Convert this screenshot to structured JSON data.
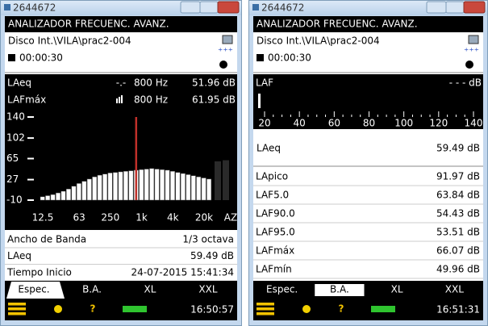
{
  "windows": [
    {
      "title": "2644672",
      "header": "ANALIZADOR FRECUENC. AVANZ.",
      "file": "Disco Int.\\VILA\\prac2-004",
      "time": "00:00:30",
      "readings": [
        {
          "name": "LAeq",
          "symbol": "-.-",
          "freq": "800 Hz",
          "value": "51.96 dB"
        },
        {
          "name": "LAFmáx",
          "freq": "800 Hz",
          "value": "61.95 dB"
        }
      ],
      "spectrum": {
        "type": "bar",
        "ylim": [
          -10,
          140
        ],
        "yticks": [
          140,
          102,
          65,
          27,
          -10
        ],
        "xlabels": [
          "12.5",
          "63",
          "250",
          "1k",
          "4k",
          "20k",
          "AZ"
        ],
        "values": [
          -4,
          -2,
          0,
          3,
          6,
          10,
          15,
          20,
          24,
          28,
          32,
          35,
          37,
          39,
          40,
          41,
          42,
          43,
          44,
          45,
          46,
          47,
          46,
          45,
          44,
          42,
          40,
          38,
          36,
          34,
          32,
          30,
          28
        ]
      },
      "info": [
        {
          "label": "Ancho de Banda",
          "value": "1/3 octava"
        },
        {
          "label": "LAeq",
          "value": "59.49 dB"
        },
        {
          "label": "Tiempo Inicio",
          "value": "24-07-2015 15:41:34"
        }
      ],
      "tabs": [
        "Espec.",
        "B.A.",
        "XL",
        "XXL"
      ],
      "clock": "16:50:57"
    },
    {
      "title": "2644672",
      "header": "ANALIZADOR FRECUENC. AVANZ.",
      "file": "Disco Int.\\VILA\\prac2-004",
      "time": "00:00:30",
      "level": {
        "name": "LAF",
        "value": "- - - dB"
      },
      "scale": {
        "xlim": [
          20,
          140
        ],
        "ticks": [
          20,
          40,
          60,
          80,
          100,
          120,
          140
        ]
      },
      "main": {
        "name": "LAeq",
        "value": "59.49 dB"
      },
      "stats": [
        {
          "label": "LApico",
          "value": "91.97 dB"
        },
        {
          "label": "LAF5.0",
          "value": "63.84 dB"
        },
        {
          "label": "LAF90.0",
          "value": "54.43 dB"
        },
        {
          "label": "LAF95.0",
          "value": "53.51 dB"
        },
        {
          "label": "LAFmáx",
          "value": "66.07 dB"
        },
        {
          "label": "LAFmín",
          "value": "49.96 dB"
        }
      ],
      "tabs": [
        "Espec.",
        "B.A.",
        "XL",
        "XXL"
      ],
      "clock": "16:51:31"
    }
  ]
}
